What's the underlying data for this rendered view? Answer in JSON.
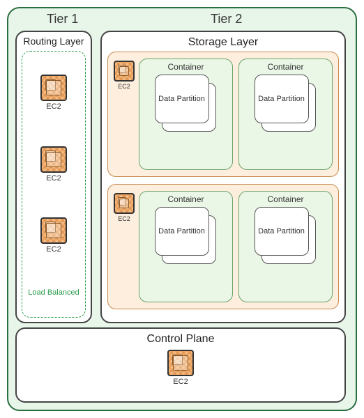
{
  "colors": {
    "outer_bg": "#e8f6ea",
    "outer_border": "#2a6e3f",
    "panel_bg": "#ffffff",
    "panel_border": "#444444",
    "lb_border": "#2a9d4a",
    "lb_text": "#2a9d4a",
    "host_bg": "#fdeedd",
    "host_border": "#c68a4e",
    "container_bg": "#eaf6e6",
    "container_border": "#6aa36a",
    "ec2_fill": "#f7c08a",
    "text": "#333333"
  },
  "labels": {
    "tier1": "Tier 1",
    "tier2": "Tier 2",
    "routing": "Routing Layer",
    "load_balanced": "Load Balanced",
    "storage": "Storage Layer",
    "container": "Container",
    "partition": "Data Partition",
    "control": "Control Plane",
    "ec2": "EC2"
  },
  "routing": {
    "ec2_count": 3
  },
  "storage": {
    "hosts": 2,
    "containers_per_host": 2,
    "partitions_per_container": 2
  }
}
